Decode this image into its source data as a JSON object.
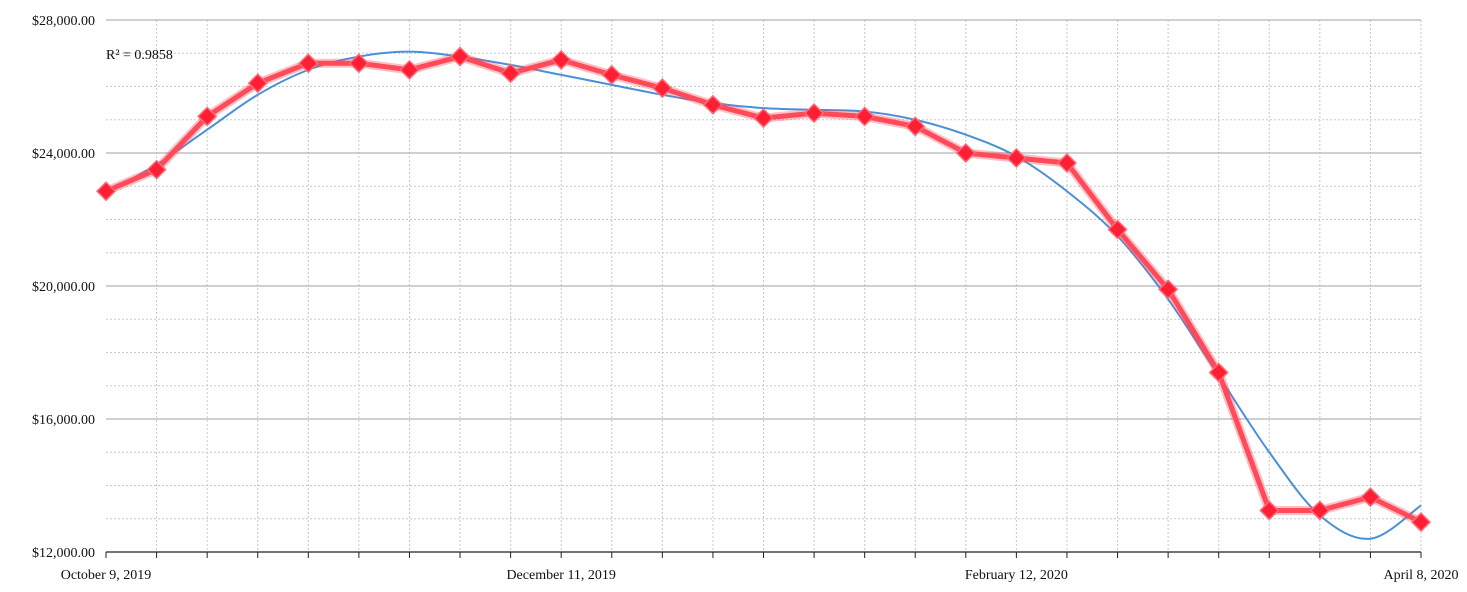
{
  "chart_data": {
    "type": "line",
    "title": "",
    "xlabel": "",
    "ylabel": "",
    "ylim": [
      12000,
      28000
    ],
    "y_ticks": [
      12000,
      16000,
      20000,
      24000,
      28000
    ],
    "y_tick_labels": [
      "$12,000.00",
      "$16,000.00",
      "$20,000.00",
      "$24,000.00",
      "$28,000.00"
    ],
    "x_tick_labels": [
      {
        "index": 0,
        "label": "October 9, 2019"
      },
      {
        "index": 9,
        "label": "December 11, 2019"
      },
      {
        "index": 18,
        "label": "February 12, 2020"
      },
      {
        "index": 26,
        "label": "April 8, 2020"
      }
    ],
    "x": [
      "October 9, 2019",
      "October 16, 2019",
      "October 23, 2019",
      "October 30, 2019",
      "November 6, 2019",
      "November 13, 2019",
      "November 20, 2019",
      "November 27, 2019",
      "December 4, 2019",
      "December 11, 2019",
      "December 18, 2019",
      "December 25, 2019",
      "January 1, 2020",
      "January 8, 2020",
      "January 15, 2020",
      "January 22, 2020",
      "January 29, 2020",
      "February 5, 2020",
      "February 12, 2020",
      "February 19, 2020",
      "February 26, 2020",
      "March 4, 2020",
      "March 11, 2020",
      "March 18, 2020",
      "March 25, 2020",
      "April 1, 2020",
      "April 8, 2020"
    ],
    "series": [
      {
        "values": [
          22850,
          23500,
          25100,
          26100,
          26700,
          26700,
          26500,
          26900,
          26400,
          26800,
          26350,
          25950,
          25450,
          25050,
          25200,
          25100,
          24800,
          24000,
          23850,
          23700,
          21700,
          19900,
          17400,
          13250,
          13250,
          13650,
          12900
        ],
        "color": "#ff4a5a"
      }
    ],
    "trendline": {
      "type": "polynomial",
      "color": "#4a90d9",
      "r_squared_label": "R² = 0.9858",
      "values": [
        22800,
        23650,
        24700,
        25750,
        26500,
        26900,
        27050,
        26900,
        26650,
        26350,
        26050,
        25750,
        25500,
        25350,
        25300,
        25250,
        25000,
        24550,
        23900,
        22850,
        21500,
        19600,
        17300,
        15000,
        13100,
        12400,
        13400
      ]
    },
    "grid": true,
    "legend": "none"
  }
}
